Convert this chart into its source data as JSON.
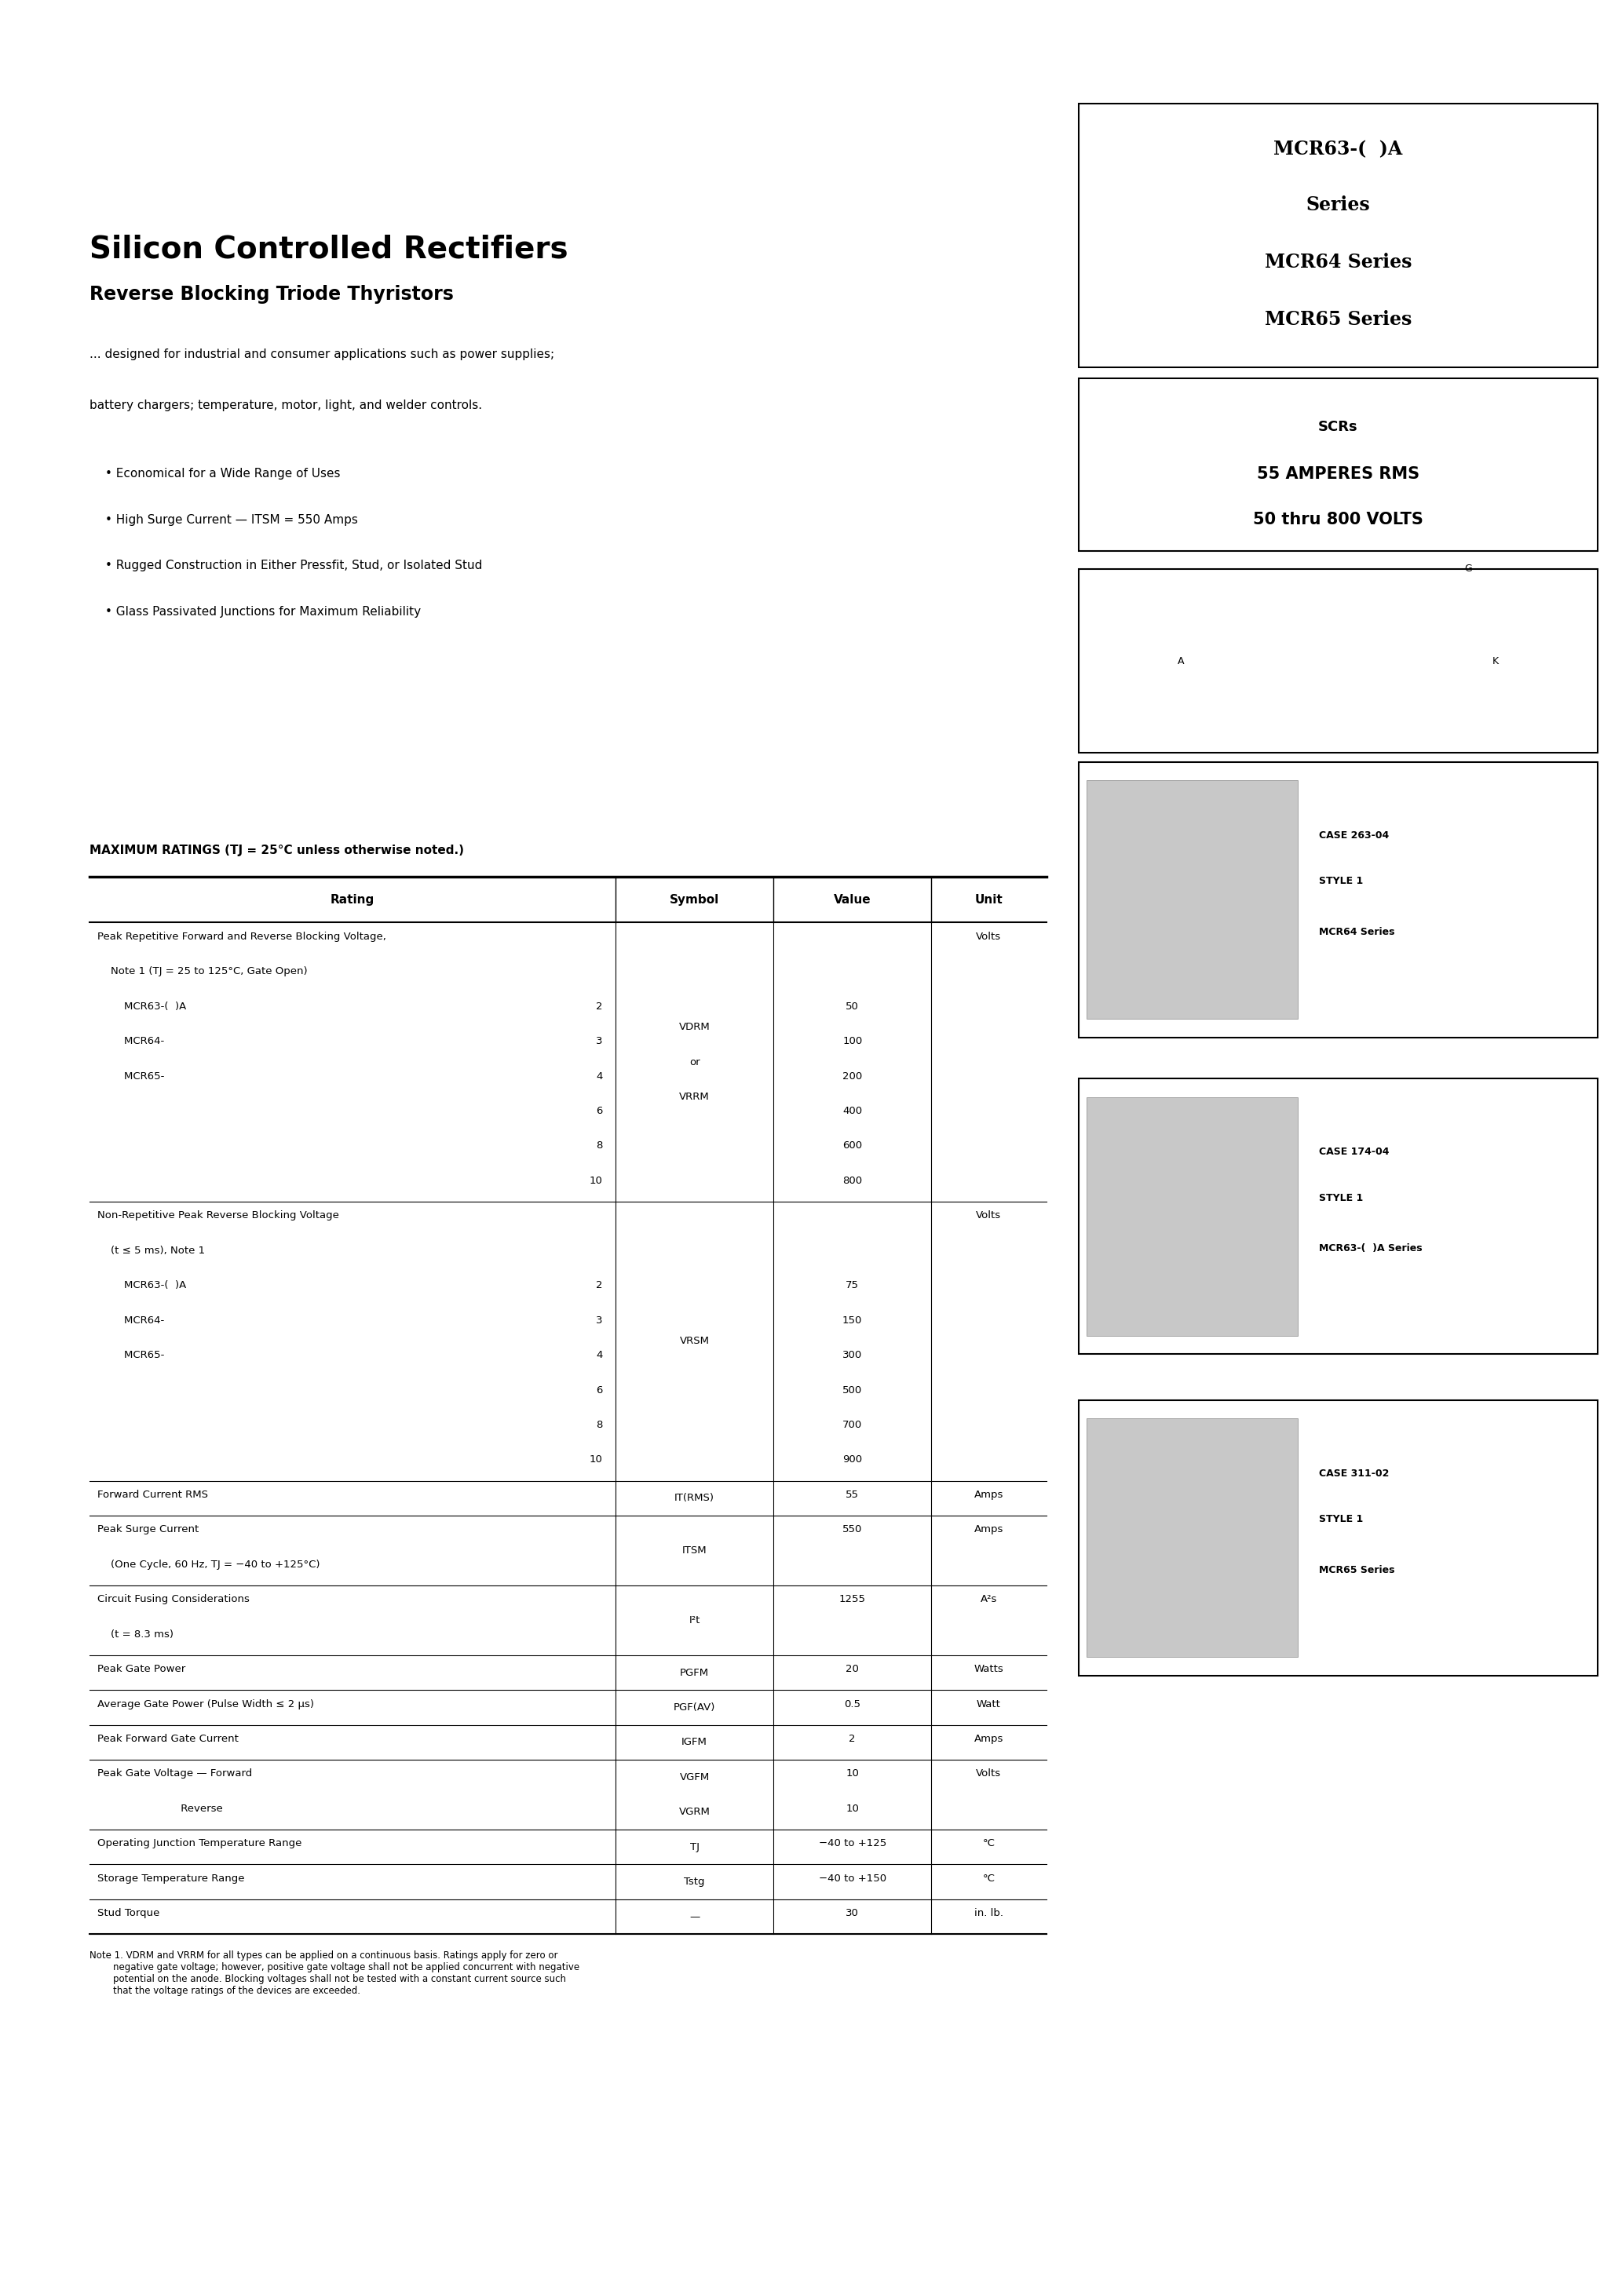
{
  "bg_color": "#ffffff",
  "page_width": 20.66,
  "page_height": 29.24,
  "title": "Silicon Controlled Rectifiers",
  "subtitle": "Reverse Blocking Triode Thyristors",
  "description_lines": [
    "... designed for industrial and consumer applications such as power supplies;",
    "battery chargers; temperature, motor, light, and welder controls."
  ],
  "bullets": [
    "Economical for a Wide Range of Uses",
    "High Surge Current — ITSM = 550 Amps",
    "Rugged Construction in Either Pressfit, Stud, or Isolated Stud",
    "Glass Passivated Junctions for Maximum Reliability"
  ],
  "series_box": {
    "lines": [
      "MCR63-(  )A",
      "Series",
      "MCR64 Series",
      "MCR65 Series"
    ]
  },
  "specs_box": {
    "lines": [
      "SCRs",
      "55 AMPERES RMS",
      "50 thru 800 VOLTS"
    ]
  },
  "table_header": "MAXIMUM RATINGS (TJ = 25°C unless otherwise noted.)",
  "table_cols": [
    "Rating",
    "Symbol",
    "Value",
    "Unit"
  ],
  "note_text": "Note 1. VDRM and VRRM for all types can be applied on a continuous basis. Ratings apply for zero or\n        negative gate voltage; however, positive gate voltage shall not be applied concurrent with negative\n        potential on the anode. Blocking voltages shall not be tested with a constant current source such\n        that the voltage ratings of the devices are exceeded.",
  "case_labels": [
    {
      "case": "CASE 263-04",
      "style": "STYLE 1",
      "series": "MCR64 Series"
    },
    {
      "case": "CASE 174-04",
      "style": "STYLE 1",
      "series": "MCR63-(  )A Series"
    },
    {
      "case": "CASE 311-02",
      "style": "STYLE 1",
      "series": "MCR65 Series"
    }
  ]
}
